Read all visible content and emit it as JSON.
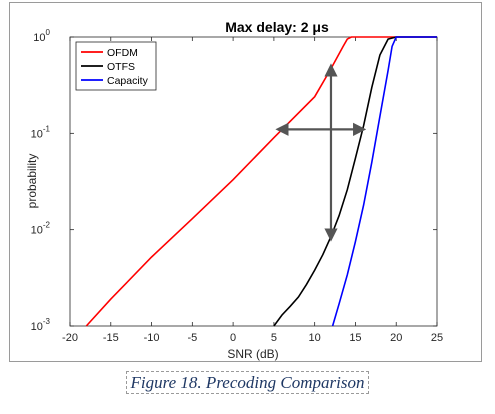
{
  "chart_data": {
    "type": "line",
    "title": "Max delay: 2 μs",
    "xlabel": "SNR (dB)",
    "ylabel": "probability",
    "xlim": [
      -20,
      25
    ],
    "ylim": [
      0.001,
      1
    ],
    "yscale": "log",
    "grid": false,
    "legend_position": "top-left",
    "x_ticks": [
      -20,
      -15,
      -10,
      -5,
      0,
      5,
      10,
      15,
      20,
      25
    ],
    "x_tick_labels": [
      "-20",
      "-15",
      "-10",
      "-5",
      "0",
      "5",
      "10",
      "15",
      "20",
      "25"
    ],
    "y_ticks": [
      0.001,
      0.01,
      0.1,
      1
    ],
    "y_tick_labels": [
      {
        "base": "10",
        "exp": "-3"
      },
      {
        "base": "10",
        "exp": "-2"
      },
      {
        "base": "10",
        "exp": "-1"
      },
      {
        "base": "10",
        "exp": "0"
      }
    ],
    "series": [
      {
        "name": "OFDM",
        "color": "#ff0000",
        "x": [
          -18,
          -15,
          -10,
          -5,
          0,
          5,
          10,
          12,
          13.5,
          14,
          14.5,
          16,
          18,
          25
        ],
        "y": [
          0.001,
          0.0019,
          0.0052,
          0.013,
          0.033,
          0.09,
          0.24,
          0.47,
          0.8,
          0.95,
          1.0,
          1.0,
          1.0,
          1.0
        ]
      },
      {
        "name": "OTFS",
        "color": "#000000",
        "x": [
          5,
          6,
          7,
          8,
          9,
          10,
          11,
          12,
          13,
          14,
          15,
          16,
          17,
          18,
          19,
          20,
          25
        ],
        "y": [
          0.001,
          0.0013,
          0.0016,
          0.002,
          0.0027,
          0.0038,
          0.0055,
          0.0085,
          0.014,
          0.026,
          0.055,
          0.12,
          0.3,
          0.65,
          0.95,
          1.0,
          1.0
        ]
      },
      {
        "name": "Capacity",
        "color": "#0000ff",
        "x": [
          12.2,
          13,
          14,
          15,
          16,
          17,
          18,
          19,
          19.5,
          20,
          25
        ],
        "y": [
          0.001,
          0.0017,
          0.0034,
          0.0075,
          0.018,
          0.05,
          0.15,
          0.45,
          0.8,
          1.0,
          1.0
        ]
      }
    ],
    "annotations": [
      {
        "type": "double-arrow",
        "color": "#555555",
        "from": [
          5.5,
          0.11
        ],
        "to": [
          16,
          0.11
        ]
      },
      {
        "type": "double-arrow",
        "color": "#555555",
        "from": [
          12,
          0.5
        ],
        "to": [
          12,
          0.008
        ]
      }
    ]
  },
  "caption": "Figure 18. Precoding Comparison"
}
